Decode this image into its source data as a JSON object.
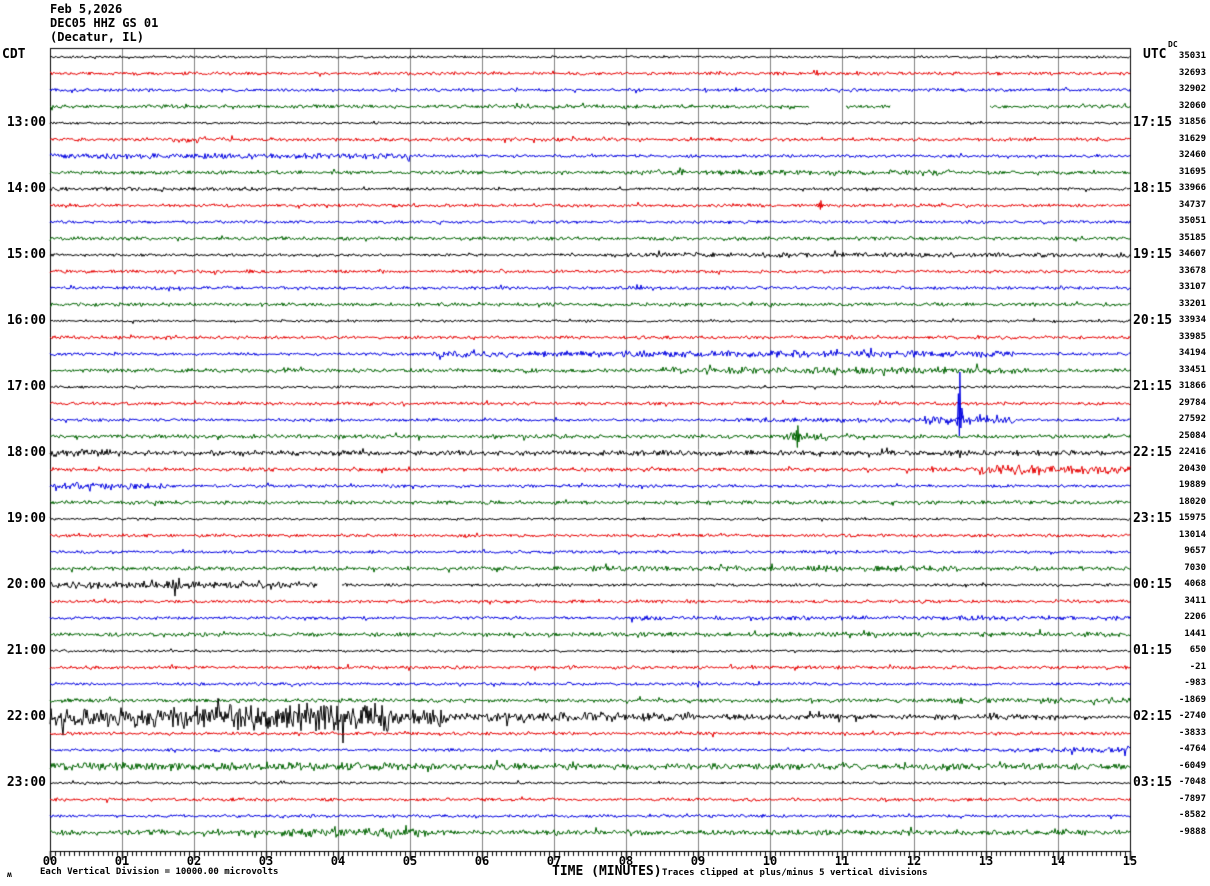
{
  "header": {
    "date_line": "Feb 5,2026",
    "station_line": "DEC05 HHZ GS 01",
    "location_line": "(Decatur, IL)"
  },
  "axis": {
    "left_tz": "CDT",
    "right_tz": "UTC",
    "dc_header": "DC",
    "x_axis_label": "TIME (MINUTES)",
    "x_tick_labels": [
      "00",
      "01",
      "02",
      "03",
      "04",
      "05",
      "06",
      "07",
      "08",
      "09",
      "10",
      "11",
      "12",
      "13",
      "14",
      "15"
    ]
  },
  "footer": {
    "scale_note": "Each Vertical Division = 10000.00 microvolts",
    "clip_note": "Traces clipped at plus/minus 5 vertical divisions",
    "watermark": "ʍ"
  },
  "chart_data": {
    "type": "line",
    "subtype": "helicorder-seismogram",
    "title": "DEC05 HHZ GS 01 (Decatur, IL) Feb 5,2026",
    "xlabel": "TIME (MINUTES)",
    "x_range_minutes": [
      0,
      15
    ],
    "minutes_per_row": 15,
    "grid": "on",
    "grid_color": "#808080",
    "frame_color": "#000000",
    "trace_colors": {
      "black": "#000000",
      "red": "#e60000",
      "blue": "#0000e0",
      "green": "#006400"
    },
    "rows": [
      {
        "c": "black",
        "cdt": "",
        "utc": "",
        "dc": 35031,
        "b": 0.8,
        "ev": []
      },
      {
        "c": "red",
        "cdt": "",
        "utc": "",
        "dc": 32693,
        "b": 1.1,
        "ev": []
      },
      {
        "c": "blue",
        "cdt": "",
        "utc": "",
        "dc": 32902,
        "b": 1.0,
        "ev": []
      },
      {
        "c": "green",
        "cdt": "",
        "utc": "",
        "dc": 32060,
        "b": 1.2,
        "ev": [
          [
            "gap",
            10.55,
            11.05
          ],
          [
            "gap",
            11.68,
            13.05
          ]
        ]
      },
      {
        "c": "black",
        "cdt": "13:00",
        "utc": "17:15",
        "dc": 31856,
        "b": 0.8,
        "ev": []
      },
      {
        "c": "red",
        "cdt": "",
        "utc": "",
        "dc": 31629,
        "b": 1.2,
        "ev": [
          [
            "band",
            1.7,
            2.1,
            2.2
          ]
        ]
      },
      {
        "c": "blue",
        "cdt": "",
        "utc": "",
        "dc": 32460,
        "b": 1.0,
        "ev": [
          [
            "band",
            0,
            5.0,
            1.9
          ]
        ]
      },
      {
        "c": "green",
        "cdt": "",
        "utc": "",
        "dc": 31695,
        "b": 1.2,
        "ev": [
          [
            "band",
            8.3,
            12.6,
            1.9
          ]
        ]
      },
      {
        "c": "black",
        "cdt": "14:00",
        "utc": "18:15",
        "dc": 33966,
        "b": 0.9,
        "ev": [
          [
            "band",
            0,
            3.5,
            1.3
          ]
        ]
      },
      {
        "c": "red",
        "cdt": "",
        "utc": "",
        "dc": 34737,
        "b": 1.1,
        "ev": [
          [
            "spike",
            10.7,
            5,
            4
          ]
        ]
      },
      {
        "c": "blue",
        "cdt": "",
        "utc": "",
        "dc": 35051,
        "b": 1.0,
        "ev": []
      },
      {
        "c": "green",
        "cdt": "",
        "utc": "",
        "dc": 35185,
        "b": 1.2,
        "ev": []
      },
      {
        "c": "black",
        "cdt": "15:00",
        "utc": "19:15",
        "dc": 34607,
        "b": 0.9,
        "ev": [
          [
            "band",
            8.0,
            15,
            1.6
          ]
        ]
      },
      {
        "c": "red",
        "cdt": "",
        "utc": "",
        "dc": 33678,
        "b": 1.1,
        "ev": []
      },
      {
        "c": "blue",
        "cdt": "",
        "utc": "",
        "dc": 33107,
        "b": 1.1,
        "ev": []
      },
      {
        "c": "green",
        "cdt": "",
        "utc": "",
        "dc": 33201,
        "b": 1.2,
        "ev": []
      },
      {
        "c": "black",
        "cdt": "16:00",
        "utc": "20:15",
        "dc": 33934,
        "b": 0.8,
        "ev": []
      },
      {
        "c": "red",
        "cdt": "",
        "utc": "",
        "dc": 33985,
        "b": 1.1,
        "ev": []
      },
      {
        "c": "blue",
        "cdt": "",
        "utc": "",
        "dc": 34194,
        "b": 1.0,
        "ev": [
          [
            "band",
            5.3,
            13.4,
            2.2
          ]
        ]
      },
      {
        "c": "green",
        "cdt": "",
        "utc": "",
        "dc": 33451,
        "b": 1.3,
        "ev": [
          [
            "band",
            8.5,
            13.5,
            2.2
          ]
        ]
      },
      {
        "c": "black",
        "cdt": "17:00",
        "utc": "21:15",
        "dc": 31866,
        "b": 0.8,
        "ev": []
      },
      {
        "c": "red",
        "cdt": "",
        "utc": "",
        "dc": 29784,
        "b": 1.1,
        "ev": []
      },
      {
        "c": "blue",
        "cdt": "",
        "utc": "",
        "dc": 27592,
        "b": 1.0,
        "ev": [
          [
            "band",
            9.5,
            12.1,
            1.6
          ],
          [
            "band",
            12.1,
            13.4,
            3.0
          ],
          [
            "spike",
            12.63,
            48,
            16
          ]
        ]
      },
      {
        "c": "green",
        "cdt": "",
        "utc": "",
        "dc": 25084,
        "b": 1.3,
        "ev": [
          [
            "band",
            10.0,
            10.8,
            3.0
          ],
          [
            "spike",
            10.38,
            11,
            11
          ]
        ]
      },
      {
        "c": "black",
        "cdt": "18:00",
        "utc": "22:15",
        "dc": 22416,
        "b": 1.0,
        "ev": [
          [
            "band",
            0,
            15,
            1.7
          ],
          [
            "band",
            0,
            1,
            2.4
          ]
        ]
      },
      {
        "c": "red",
        "cdt": "",
        "utc": "",
        "dc": 20430,
        "b": 1.2,
        "ev": [
          [
            "band",
            12.9,
            15,
            3.2
          ]
        ]
      },
      {
        "c": "blue",
        "cdt": "",
        "utc": "",
        "dc": 19889,
        "b": 1.0,
        "ev": [
          [
            "band",
            0,
            1.65,
            2.4
          ]
        ]
      },
      {
        "c": "green",
        "cdt": "",
        "utc": "",
        "dc": 18020,
        "b": 1.3,
        "ev": []
      },
      {
        "c": "black",
        "cdt": "19:00",
        "utc": "23:15",
        "dc": 15975,
        "b": 0.8,
        "ev": []
      },
      {
        "c": "red",
        "cdt": "",
        "utc": "",
        "dc": 13014,
        "b": 1.1,
        "ev": []
      },
      {
        "c": "blue",
        "cdt": "",
        "utc": "",
        "dc": 9657,
        "b": 1.0,
        "ev": []
      },
      {
        "c": "green",
        "cdt": "",
        "utc": "",
        "dc": 7030,
        "b": 1.3,
        "ev": [
          [
            "band",
            7.3,
            12.6,
            1.9
          ]
        ]
      },
      {
        "c": "black",
        "cdt": "20:00",
        "utc": "00:15",
        "dc": 4068,
        "b": 0.9,
        "ev": [
          [
            "band",
            0,
            3.7,
            2.2
          ],
          [
            "band",
            1.3,
            1.8,
            3.3
          ],
          [
            "band",
            2.6,
            3.2,
            2.8
          ],
          [
            "gap",
            3.72,
            4.05
          ]
        ]
      },
      {
        "c": "red",
        "cdt": "",
        "utc": "",
        "dc": 3411,
        "b": 1.1,
        "ev": []
      },
      {
        "c": "blue",
        "cdt": "",
        "utc": "",
        "dc": 2206,
        "b": 1.0,
        "ev": [
          [
            "band",
            8,
            15,
            1.5
          ]
        ]
      },
      {
        "c": "green",
        "cdt": "",
        "utc": "",
        "dc": 1441,
        "b": 1.3,
        "ev": [
          [
            "band",
            8,
            15,
            1.6
          ]
        ]
      },
      {
        "c": "black",
        "cdt": "21:00",
        "utc": "01:15",
        "dc": 650,
        "b": 0.8,
        "ev": []
      },
      {
        "c": "red",
        "cdt": "",
        "utc": "",
        "dc": -21,
        "b": 1.1,
        "ev": []
      },
      {
        "c": "blue",
        "cdt": "",
        "utc": "",
        "dc": -983,
        "b": 1.0,
        "ev": []
      },
      {
        "c": "green",
        "cdt": "",
        "utc": "",
        "dc": -1869,
        "b": 1.3,
        "ev": [
          [
            "band",
            12.5,
            15,
            1.9
          ]
        ]
      },
      {
        "c": "black",
        "cdt": "22:00",
        "utc": "02:15",
        "dc": -2740,
        "b": 1.0,
        "ev": [
          [
            "band",
            0,
            5.5,
            6.0
          ],
          [
            "band",
            2.0,
            4.7,
            8.5
          ],
          [
            "band",
            5.5,
            9,
            3.0
          ],
          [
            "band",
            9,
            14,
            2.0
          ]
        ]
      },
      {
        "c": "red",
        "cdt": "",
        "utc": "",
        "dc": -3833,
        "b": 1.1,
        "ev": []
      },
      {
        "c": "blue",
        "cdt": "",
        "utc": "",
        "dc": -4764,
        "b": 1.0,
        "ev": [
          [
            "band",
            13.5,
            15,
            1.8
          ]
        ]
      },
      {
        "c": "green",
        "cdt": "",
        "utc": "",
        "dc": -6049,
        "b": 1.4,
        "ev": [
          [
            "band",
            0,
            15,
            2.1
          ],
          [
            "band",
            0,
            5,
            2.7
          ]
        ]
      },
      {
        "c": "black",
        "cdt": "23:00",
        "utc": "03:15",
        "dc": -7048,
        "b": 0.8,
        "ev": []
      },
      {
        "c": "red",
        "cdt": "",
        "utc": "",
        "dc": -7897,
        "b": 1.1,
        "ev": []
      },
      {
        "c": "blue",
        "cdt": "",
        "utc": "",
        "dc": -8582,
        "b": 1.0,
        "ev": []
      },
      {
        "c": "green",
        "cdt": "",
        "utc": "",
        "dc": -9888,
        "b": 1.4,
        "ev": [
          [
            "band",
            0,
            15,
            1.8
          ],
          [
            "band",
            3.2,
            5.3,
            3.3
          ]
        ]
      }
    ]
  }
}
